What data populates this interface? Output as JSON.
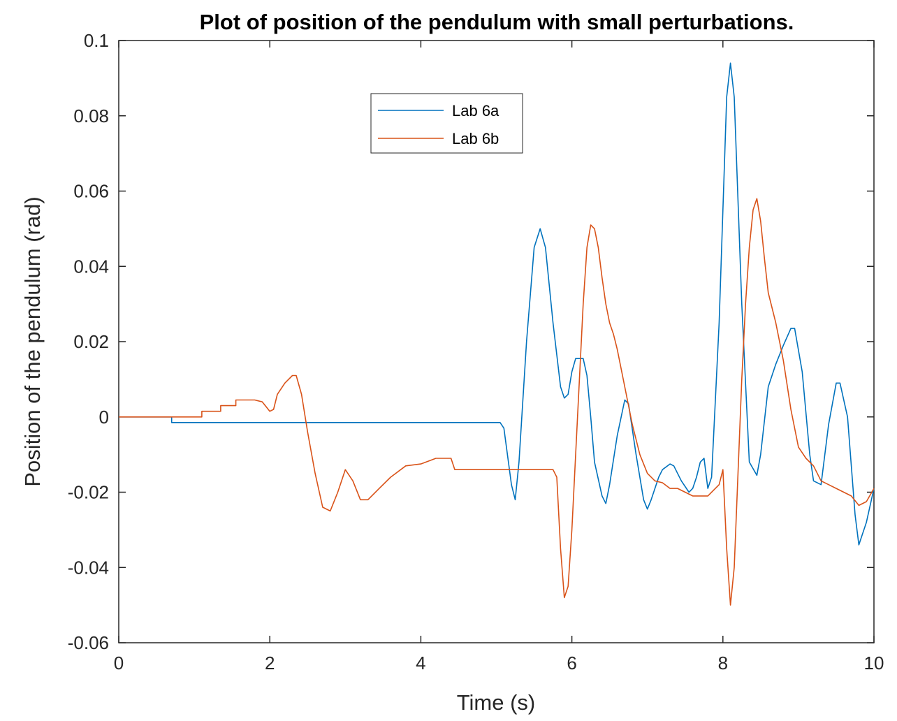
{
  "chart_data": {
    "type": "line",
    "title": "Plot of position of the pendulum with small perturbations.",
    "xlabel": "Time (s)",
    "ylabel": "Position of the pendulum (rad)",
    "xlim": [
      0,
      10
    ],
    "ylim": [
      -0.06,
      0.1
    ],
    "xticks": [
      0,
      2,
      4,
      6,
      8,
      10
    ],
    "xtick_labels": [
      "0",
      "2",
      "4",
      "6",
      "8",
      "10"
    ],
    "yticks": [
      -0.06,
      -0.04,
      -0.02,
      0,
      0.02,
      0.04,
      0.06,
      0.08,
      0.1
    ],
    "ytick_labels": [
      "-0.06",
      "-0.04",
      "-0.02",
      "0",
      "0.02",
      "0.04",
      "0.06",
      "0.08",
      "0.1"
    ],
    "grid": false,
    "legend_position": "top-center",
    "series": [
      {
        "name": "Lab 6a",
        "color": "#0072BD",
        "x": [
          0,
          0.7,
          0.7,
          5.05,
          5.1,
          5.2,
          5.25,
          5.3,
          5.4,
          5.5,
          5.58,
          5.65,
          5.75,
          5.85,
          5.9,
          5.95,
          6.0,
          6.05,
          6.15,
          6.2,
          6.25,
          6.3,
          6.4,
          6.45,
          6.5,
          6.6,
          6.7,
          6.75,
          6.85,
          6.95,
          7.0,
          7.05,
          7.1,
          7.15,
          7.2,
          7.3,
          7.35,
          7.45,
          7.55,
          7.6,
          7.65,
          7.7,
          7.75,
          7.8,
          7.85,
          7.95,
          8.05,
          8.1,
          8.15,
          8.25,
          8.35,
          8.45,
          8.5,
          8.6,
          8.7,
          8.8,
          8.9,
          8.95,
          9.05,
          9.15,
          9.2,
          9.3,
          9.4,
          9.5,
          9.55,
          9.65,
          9.75,
          9.8,
          9.9,
          10.0
        ],
        "values": [
          0,
          0,
          -0.0015,
          -0.0015,
          -0.003,
          -0.018,
          -0.022,
          -0.012,
          0.02,
          0.045,
          0.05,
          0.045,
          0.025,
          0.008,
          0.005,
          0.006,
          0.012,
          0.0155,
          0.0155,
          0.011,
          0.0,
          -0.012,
          -0.021,
          -0.023,
          -0.018,
          -0.005,
          0.0045,
          0.0035,
          -0.01,
          -0.022,
          -0.0245,
          -0.022,
          -0.019,
          -0.016,
          -0.014,
          -0.0125,
          -0.013,
          -0.017,
          -0.02,
          -0.019,
          -0.016,
          -0.012,
          -0.011,
          -0.019,
          -0.016,
          0.025,
          0.085,
          0.094,
          0.085,
          0.03,
          -0.012,
          -0.0155,
          -0.01,
          0.008,
          0.014,
          0.019,
          0.0235,
          0.0235,
          0.012,
          -0.01,
          -0.017,
          -0.018,
          -0.002,
          0.009,
          0.009,
          0.0,
          -0.026,
          -0.034,
          -0.028,
          -0.019
        ]
      },
      {
        "name": "Lab 6b",
        "color": "#D95319",
        "x": [
          0,
          1.1,
          1.1,
          1.35,
          1.35,
          1.55,
          1.55,
          1.8,
          1.9,
          2.0,
          2.05,
          2.1,
          2.2,
          2.3,
          2.35,
          2.42,
          2.5,
          2.6,
          2.7,
          2.8,
          2.9,
          3.0,
          3.1,
          3.2,
          3.3,
          3.45,
          3.6,
          3.8,
          4.0,
          4.2,
          4.4,
          4.45,
          5.5,
          5.75,
          5.8,
          5.85,
          5.9,
          5.95,
          6.0,
          6.05,
          6.1,
          6.15,
          6.2,
          6.25,
          6.3,
          6.35,
          6.4,
          6.45,
          6.5,
          6.55,
          6.6,
          6.7,
          6.8,
          6.9,
          7.0,
          7.1,
          7.2,
          7.3,
          7.4,
          7.6,
          7.8,
          7.95,
          8.0,
          8.05,
          8.1,
          8.15,
          8.2,
          8.25,
          8.3,
          8.35,
          8.4,
          8.45,
          8.5,
          8.55,
          8.6,
          8.7,
          8.8,
          8.9,
          9.0,
          9.1,
          9.2,
          9.3,
          9.4,
          9.5,
          9.6,
          9.7,
          9.8,
          9.9,
          10.0
        ],
        "values": [
          0,
          0,
          0.0015,
          0.0015,
          0.003,
          0.003,
          0.0045,
          0.0045,
          0.004,
          0.0015,
          0.002,
          0.006,
          0.009,
          0.011,
          0.011,
          0.006,
          -0.004,
          -0.015,
          -0.024,
          -0.025,
          -0.02,
          -0.014,
          -0.017,
          -0.022,
          -0.022,
          -0.019,
          -0.016,
          -0.013,
          -0.0125,
          -0.011,
          -0.011,
          -0.014,
          -0.014,
          -0.014,
          -0.016,
          -0.035,
          -0.048,
          -0.045,
          -0.03,
          -0.01,
          0.01,
          0.03,
          0.045,
          0.051,
          0.05,
          0.045,
          0.037,
          0.03,
          0.025,
          0.022,
          0.018,
          0.008,
          -0.002,
          -0.01,
          -0.015,
          -0.017,
          -0.0175,
          -0.019,
          -0.019,
          -0.021,
          -0.021,
          -0.018,
          -0.014,
          -0.035,
          -0.05,
          -0.04,
          -0.015,
          0.01,
          0.03,
          0.045,
          0.055,
          0.058,
          0.052,
          0.042,
          0.033,
          0.025,
          0.015,
          0.002,
          -0.008,
          -0.011,
          -0.013,
          -0.017,
          -0.018,
          -0.019,
          -0.02,
          -0.021,
          -0.0235,
          -0.0225,
          -0.019
        ]
      }
    ]
  }
}
